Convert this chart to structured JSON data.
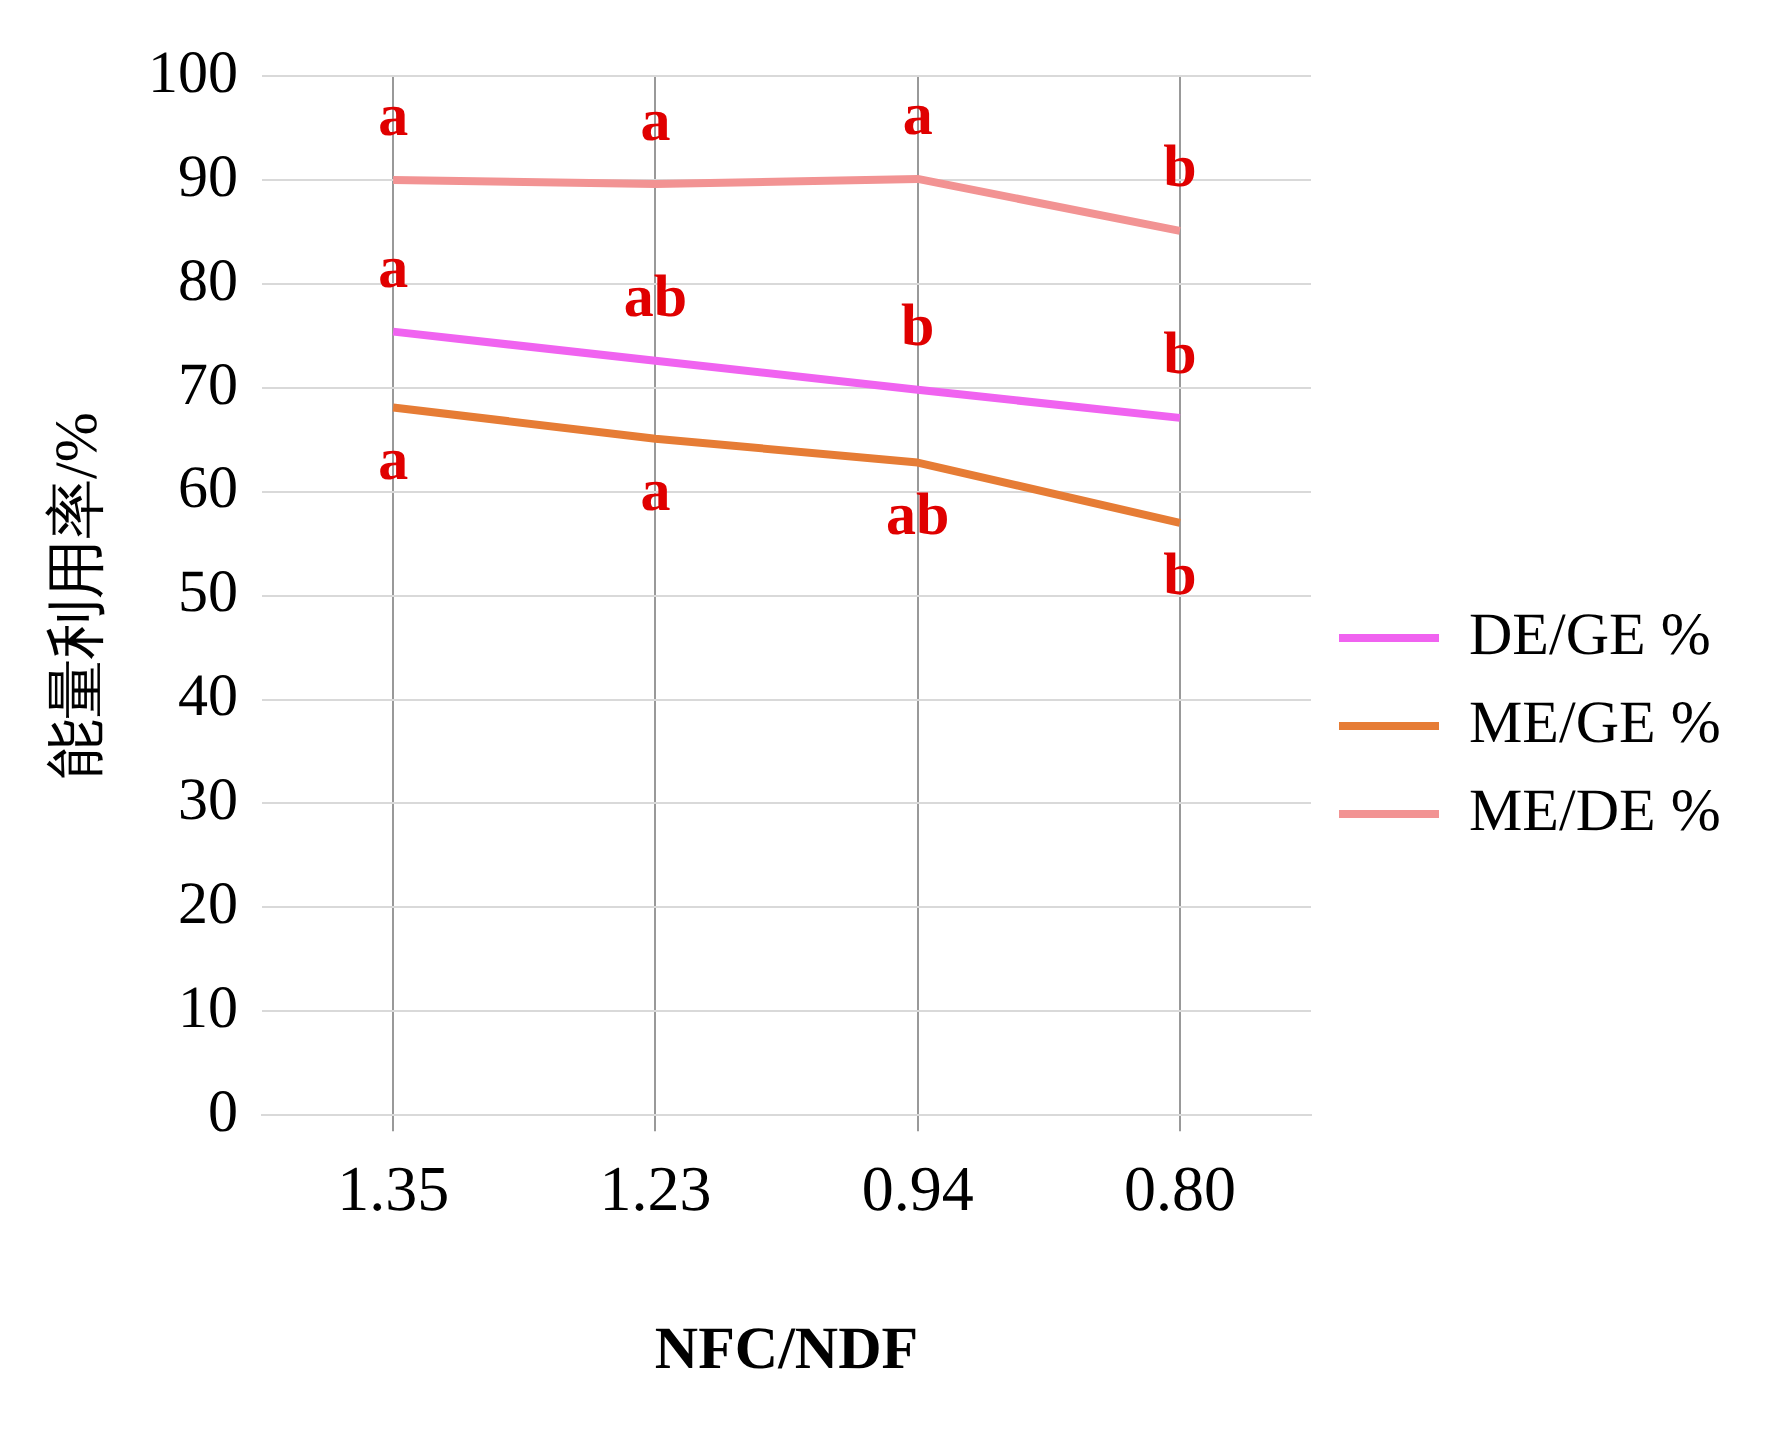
{
  "chart_data": {
    "type": "line",
    "xlabel": "NFC/NDF",
    "ylabel": "能量利用率/%",
    "categories": [
      "1.35",
      "1.23",
      "0.94",
      "0.80"
    ],
    "series": [
      {
        "name": "DE/GE %",
        "color": "#f063f0",
        "values": [
          75.4,
          72.6,
          69.8,
          67.1
        ]
      },
      {
        "name": "ME/GE %",
        "color": "#e67c35",
        "values": [
          68.1,
          65.1,
          62.8,
          57.0
        ]
      },
      {
        "name": "ME/DE %",
        "color": "#f29393",
        "values": [
          90.0,
          89.6,
          90.1,
          85.1
        ]
      }
    ],
    "ylim": [
      0,
      100
    ],
    "yticks": [
      0,
      10,
      20,
      30,
      40,
      50,
      60,
      70,
      80,
      90,
      100
    ],
    "grid": true,
    "legend": "right",
    "marker": "none",
    "line_style": "solid",
    "annotations": [
      {
        "text": "a",
        "x": "1.35",
        "y": 90.0
      },
      {
        "text": "a",
        "x": "1.23",
        "y": 89.6
      },
      {
        "text": "a",
        "x": "0.94",
        "y": 90.1
      },
      {
        "text": "b",
        "x": "0.80",
        "y": 85.1
      },
      {
        "text": "a",
        "x": "1.35",
        "y": 75.4
      },
      {
        "text": "ab",
        "x": "1.23",
        "y": 72.6
      },
      {
        "text": "b",
        "x": "0.94",
        "y": 69.8
      },
      {
        "text": "b",
        "x": "0.80",
        "y": 67.1
      },
      {
        "text": "a",
        "x": "1.35",
        "y": 68.1
      },
      {
        "text": "a",
        "x": "1.23",
        "y": 65.1
      },
      {
        "text": "ab",
        "x": "0.94",
        "y": 62.8
      },
      {
        "text": "b",
        "x": "0.80",
        "y": 57.0
      }
    ]
  }
}
